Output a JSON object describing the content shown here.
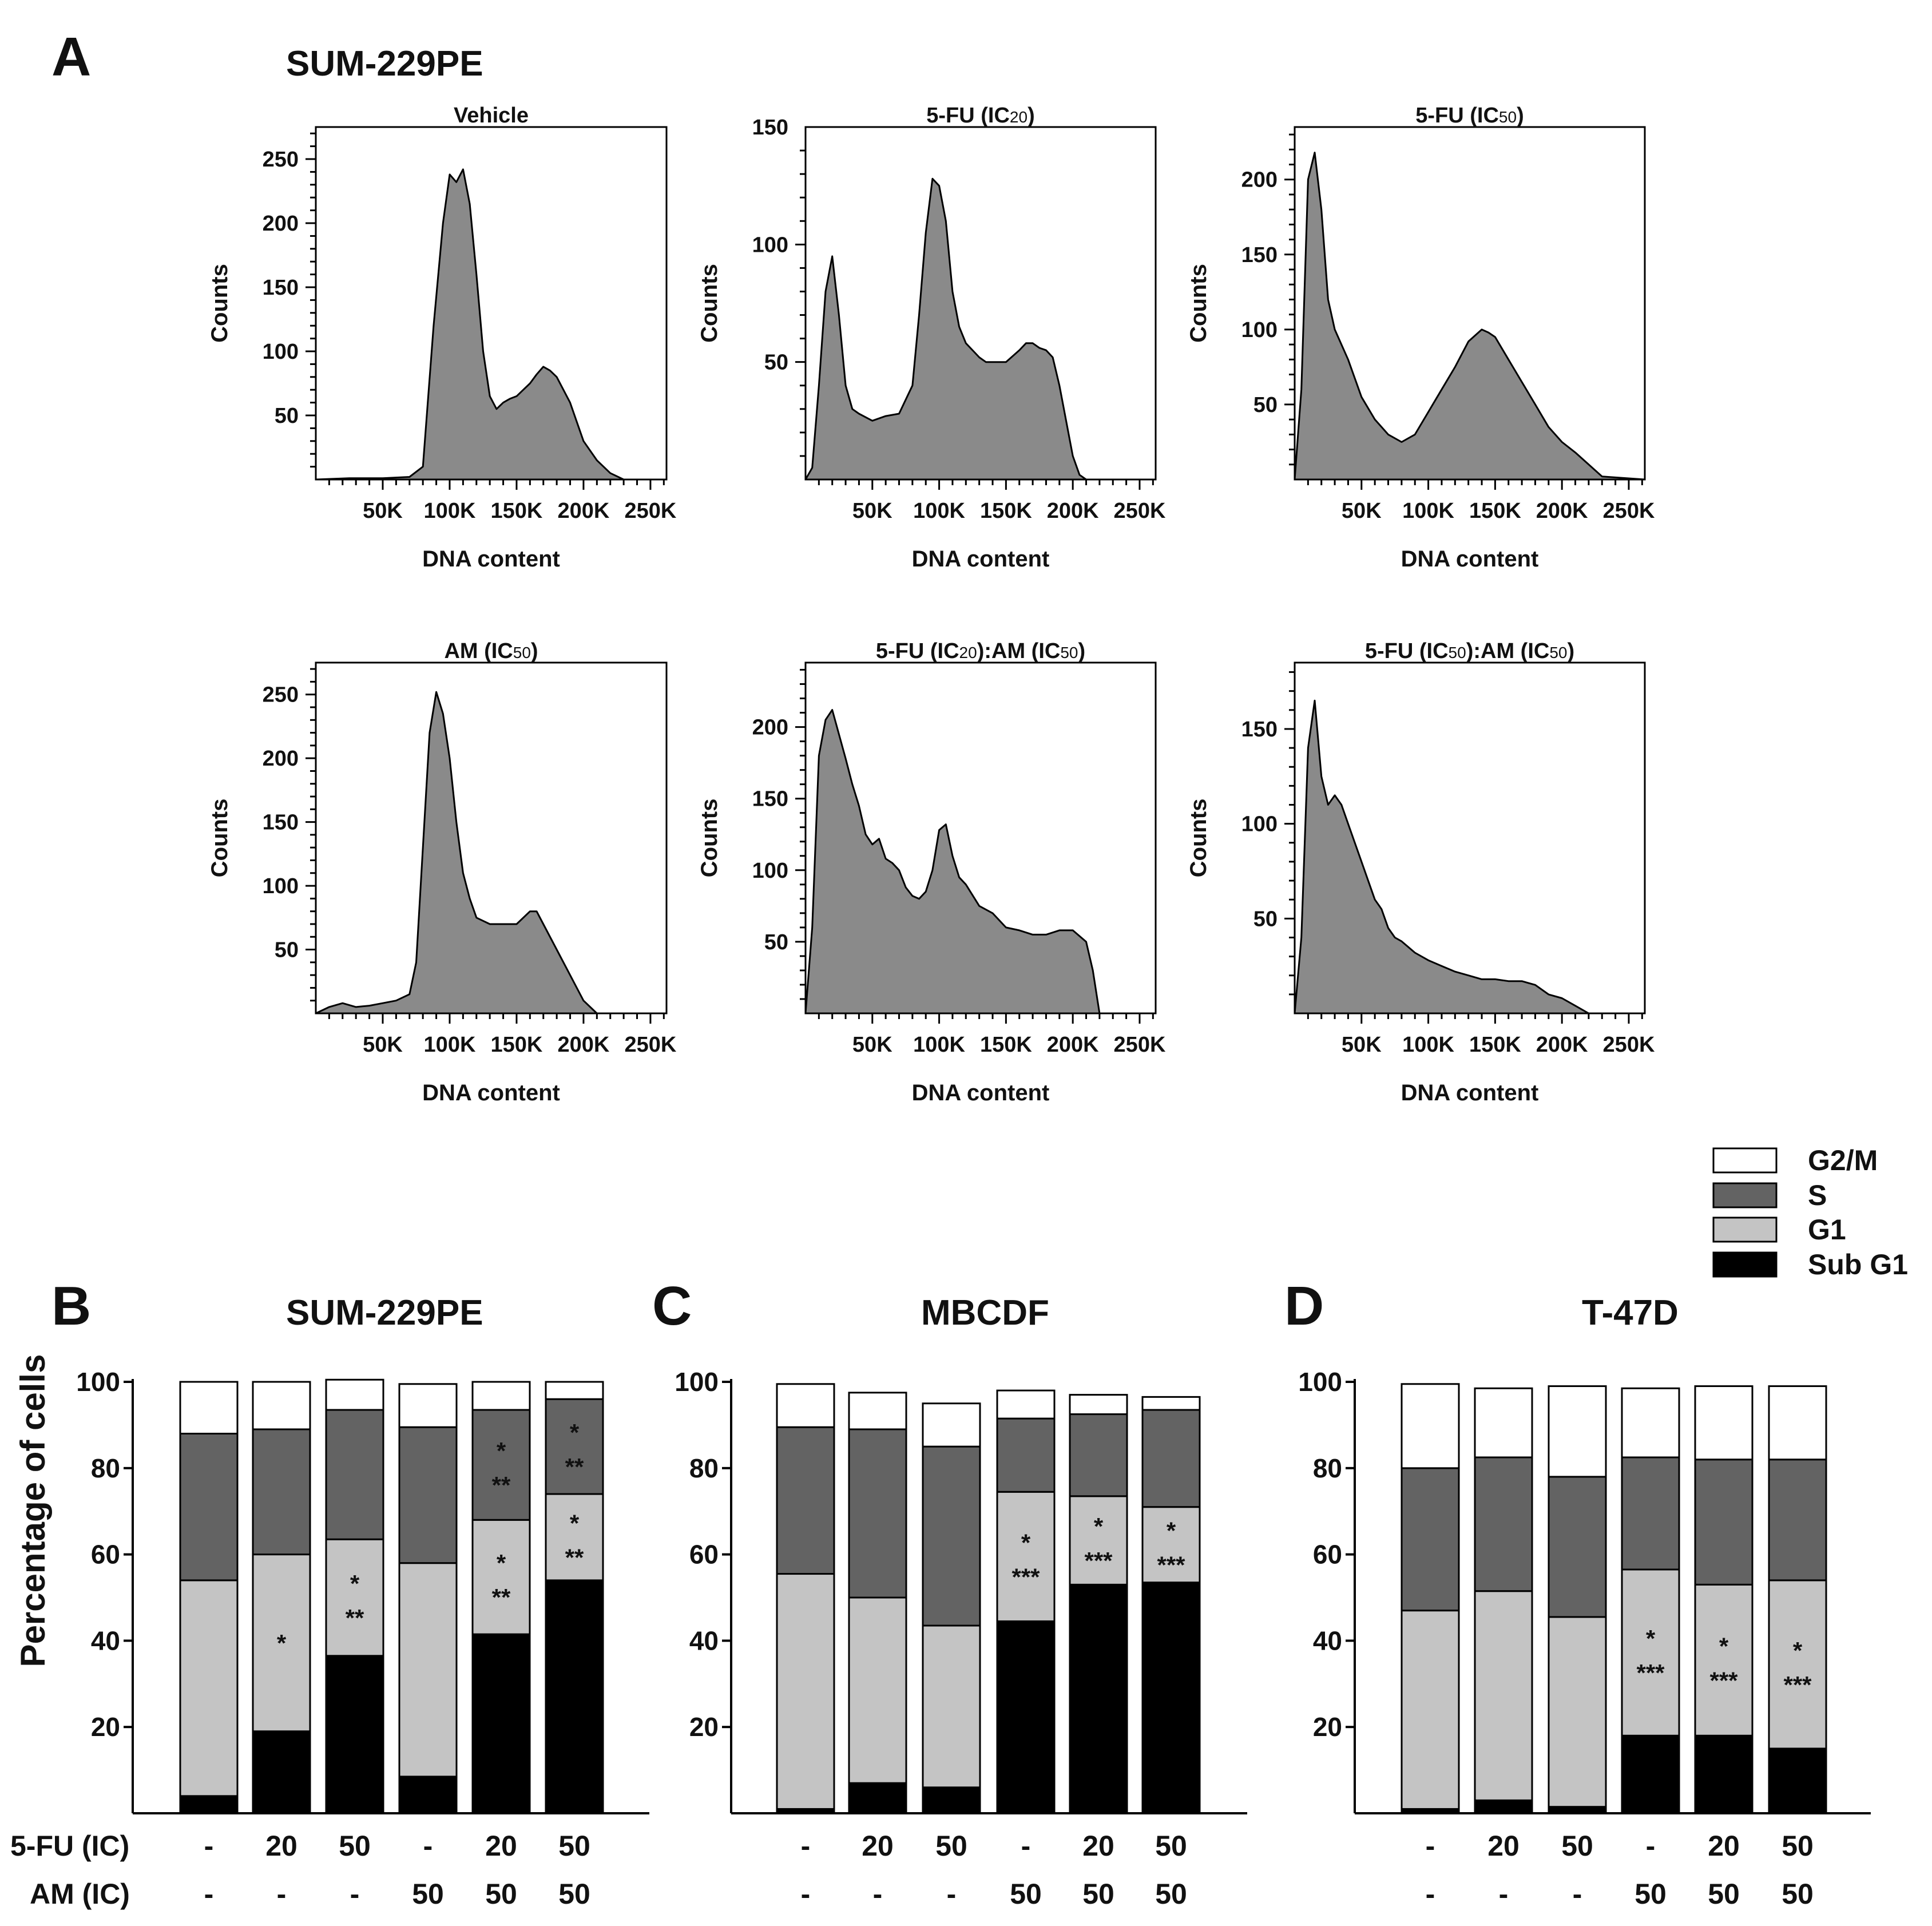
{
  "figure": {
    "panel_a": {
      "letter": "A",
      "cell_line": "SUM-229PE"
    },
    "panel_b": {
      "letter": "B",
      "cell_line": "SUM-229PE"
    },
    "panel_c": {
      "letter": "C",
      "cell_line": "MBCDF"
    },
    "panel_d": {
      "letter": "D",
      "cell_line": "T-47D"
    },
    "row_labels": [
      "5-FU (IC)",
      "AM (IC)"
    ],
    "fu_row": [
      "-",
      "20",
      "50",
      "-",
      "20",
      "50"
    ],
    "am_row": [
      "-",
      "-",
      "-",
      "50",
      "50",
      "50"
    ],
    "bar_ylabel": "Percentage of cells",
    "legend": [
      {
        "label": "G2/M",
        "color": "#ffffff"
      },
      {
        "label": "S",
        "color": "#636363"
      },
      {
        "label": "G1",
        "color": "#c4c4c4"
      },
      {
        "label": "Sub G1",
        "color": "#000000"
      }
    ]
  },
  "chart_data": [
    {
      "type": "area",
      "panel": "A",
      "title": "Vehicle",
      "xlabel": "DNA content",
      "ylabel": "Counts",
      "x_ticks": [
        "50K",
        "100K",
        "150K",
        "200K",
        "250K"
      ],
      "y_ticks": [
        50,
        100,
        150,
        200,
        250
      ],
      "xlim": [
        0,
        262000
      ],
      "ylim": [
        0,
        275
      ],
      "x": [
        0,
        25,
        50,
        70,
        80,
        88,
        95,
        100,
        105,
        110,
        115,
        120,
        125,
        130,
        135,
        140,
        145,
        150,
        155,
        160,
        165,
        170,
        175,
        180,
        185,
        190,
        195,
        200,
        210,
        220,
        230,
        240,
        262
      ],
      "y": [
        0,
        1,
        1,
        2,
        10,
        120,
        200,
        238,
        232,
        242,
        215,
        160,
        100,
        65,
        55,
        60,
        63,
        65,
        70,
        75,
        82,
        88,
        85,
        80,
        70,
        60,
        45,
        30,
        15,
        5,
        0,
        0,
        0
      ]
    },
    {
      "type": "area",
      "panel": "A",
      "title": "5-FU (IC20)",
      "xlabel": "DNA content",
      "ylabel": "Counts",
      "x_ticks": [
        "50K",
        "100K",
        "150K",
        "200K",
        "250K"
      ],
      "y_ticks": [
        50,
        100,
        150
      ],
      "xlim": [
        0,
        262000
      ],
      "ylim": [
        0,
        150
      ],
      "x": [
        0,
        5,
        10,
        15,
        20,
        25,
        30,
        35,
        40,
        50,
        60,
        70,
        80,
        85,
        90,
        95,
        100,
        105,
        110,
        115,
        120,
        125,
        130,
        135,
        140,
        150,
        160,
        165,
        170,
        175,
        180,
        185,
        190,
        195,
        200,
        205,
        210,
        262
      ],
      "y": [
        0,
        5,
        40,
        80,
        95,
        70,
        40,
        30,
        28,
        25,
        27,
        28,
        40,
        70,
        105,
        128,
        125,
        110,
        80,
        65,
        58,
        55,
        52,
        50,
        50,
        50,
        55,
        58,
        58,
        56,
        55,
        52,
        40,
        25,
        10,
        2,
        0,
        0
      ]
    },
    {
      "type": "area",
      "panel": "A",
      "title": "5-FU (IC50)",
      "xlabel": "DNA content",
      "ylabel": "Counts",
      "x_ticks": [
        "50K",
        "100K",
        "150K",
        "200K",
        "250K"
      ],
      "y_ticks": [
        50,
        100,
        150,
        200
      ],
      "xlim": [
        0,
        262000
      ],
      "ylim": [
        0,
        235
      ],
      "x": [
        0,
        5,
        10,
        15,
        20,
        25,
        30,
        40,
        50,
        60,
        70,
        80,
        90,
        100,
        110,
        120,
        130,
        140,
        145,
        150,
        160,
        170,
        180,
        190,
        200,
        210,
        220,
        230,
        262
      ],
      "y": [
        0,
        60,
        200,
        218,
        180,
        120,
        100,
        80,
        55,
        40,
        30,
        25,
        30,
        45,
        60,
        75,
        92,
        100,
        98,
        95,
        80,
        65,
        50,
        35,
        25,
        18,
        10,
        2,
        0
      ]
    },
    {
      "type": "area",
      "panel": "A",
      "title": "AM (IC50)",
      "xlabel": "DNA content",
      "ylabel": "Counts",
      "x_ticks": [
        "50K",
        "100K",
        "150K",
        "200K",
        "250K"
      ],
      "y_ticks": [
        50,
        100,
        150,
        200,
        250
      ],
      "xlim": [
        0,
        262000
      ],
      "ylim": [
        0,
        275
      ],
      "x": [
        0,
        10,
        20,
        30,
        40,
        50,
        60,
        70,
        75,
        80,
        85,
        90,
        95,
        100,
        105,
        110,
        115,
        120,
        130,
        140,
        150,
        160,
        165,
        170,
        180,
        190,
        200,
        210,
        262
      ],
      "y": [
        0,
        5,
        8,
        5,
        6,
        8,
        10,
        15,
        40,
        130,
        220,
        252,
        235,
        200,
        150,
        110,
        90,
        75,
        70,
        70,
        70,
        80,
        80,
        70,
        50,
        30,
        10,
        0,
        0
      ]
    },
    {
      "type": "area",
      "panel": "A",
      "title": "5-FU (IC20):AM (IC50)",
      "xlabel": "DNA content",
      "ylabel": "Counts",
      "x_ticks": [
        "50K",
        "100K",
        "150K",
        "200K",
        "250K"
      ],
      "y_ticks": [
        50,
        100,
        150,
        200
      ],
      "xlim": [
        0,
        262000
      ],
      "ylim": [
        0,
        245
      ],
      "x": [
        0,
        5,
        10,
        15,
        20,
        25,
        30,
        35,
        40,
        45,
        50,
        55,
        60,
        65,
        70,
        75,
        80,
        85,
        90,
        95,
        100,
        105,
        110,
        115,
        120,
        130,
        140,
        150,
        160,
        170,
        180,
        190,
        200,
        210,
        215,
        220,
        262
      ],
      "y": [
        0,
        60,
        180,
        205,
        212,
        195,
        178,
        160,
        145,
        125,
        118,
        122,
        108,
        105,
        100,
        88,
        82,
        80,
        85,
        100,
        128,
        132,
        110,
        95,
        90,
        75,
        70,
        60,
        58,
        55,
        55,
        58,
        58,
        50,
        30,
        0,
        0
      ]
    },
    {
      "type": "area",
      "panel": "A",
      "title": "5-FU (IC50):AM (IC50)",
      "xlabel": "DNA content",
      "ylabel": "Counts",
      "x_ticks": [
        "50K",
        "100K",
        "150K",
        "200K",
        "250K"
      ],
      "y_ticks": [
        50,
        100,
        150
      ],
      "xlim": [
        0,
        262000
      ],
      "ylim": [
        0,
        185
      ],
      "x": [
        0,
        5,
        10,
        15,
        20,
        25,
        30,
        35,
        40,
        45,
        50,
        55,
        60,
        65,
        70,
        75,
        80,
        90,
        100,
        110,
        120,
        130,
        140,
        150,
        160,
        170,
        180,
        190,
        200,
        210,
        220,
        262
      ],
      "y": [
        0,
        40,
        140,
        165,
        125,
        110,
        115,
        110,
        100,
        90,
        80,
        70,
        60,
        55,
        45,
        40,
        38,
        32,
        28,
        25,
        22,
        20,
        18,
        18,
        17,
        17,
        15,
        10,
        8,
        4,
        0,
        0
      ]
    },
    {
      "type": "bar",
      "stacked": true,
      "panel": "B",
      "title": "SUM-229PE",
      "ylabel": "Percentage of cells",
      "ylim": [
        0,
        100
      ],
      "y_ticks": [
        20,
        40,
        60,
        80,
        100
      ],
      "series": [
        {
          "name": "Sub G1",
          "values": [
            4,
            19,
            36.5,
            8.5,
            41.5,
            54
          ]
        },
        {
          "name": "G1",
          "values": [
            50,
            41,
            27,
            49.5,
            26.5,
            20
          ]
        },
        {
          "name": "S",
          "values": [
            34,
            29,
            30,
            31.5,
            25.5,
            22
          ]
        },
        {
          "name": "G2/M",
          "values": [
            12,
            11,
            7,
            10,
            6.5,
            4
          ]
        }
      ],
      "annotations": [
        {
          "bar": 1,
          "segment": "G1",
          "marks": [
            "*"
          ]
        },
        {
          "bar": 2,
          "segment": "G1",
          "marks": [
            "*",
            "**"
          ]
        },
        {
          "bar": 4,
          "segment": "G1",
          "marks": [
            "*",
            "**"
          ]
        },
        {
          "bar": 4,
          "segment": "S",
          "marks": [
            "*",
            "**"
          ]
        },
        {
          "bar": 5,
          "segment": "G1",
          "marks": [
            "*",
            "**"
          ]
        },
        {
          "bar": 5,
          "segment": "S",
          "marks": [
            "*",
            "**"
          ]
        }
      ]
    },
    {
      "type": "bar",
      "stacked": true,
      "panel": "C",
      "title": "MBCDF",
      "ylim": [
        0,
        100
      ],
      "y_ticks": [
        20,
        40,
        60,
        80,
        100
      ],
      "series": [
        {
          "name": "Sub G1",
          "values": [
            1,
            7,
            6,
            44.5,
            53,
            53.5
          ]
        },
        {
          "name": "G1",
          "values": [
            54.5,
            43,
            37.5,
            30,
            20.5,
            17.5
          ]
        },
        {
          "name": "S",
          "values": [
            34,
            39,
            41.5,
            17,
            19,
            22.5
          ]
        },
        {
          "name": "G2/M",
          "values": [
            10,
            8.5,
            10,
            6.5,
            4.5,
            3
          ]
        }
      ],
      "annotations": [
        {
          "bar": 3,
          "segment": "G1",
          "marks": [
            "*",
            "***"
          ]
        },
        {
          "bar": 4,
          "segment": "G1",
          "marks": [
            "*",
            "***"
          ]
        },
        {
          "bar": 5,
          "segment": "G1",
          "marks": [
            "*",
            "***"
          ]
        }
      ]
    },
    {
      "type": "bar",
      "stacked": true,
      "panel": "D",
      "title": "T-47D",
      "ylim": [
        0,
        100
      ],
      "y_ticks": [
        20,
        40,
        60,
        80,
        100
      ],
      "series": [
        {
          "name": "Sub G1",
          "values": [
            1,
            3,
            1.5,
            18,
            18,
            15
          ]
        },
        {
          "name": "G1",
          "values": [
            46,
            48.5,
            44,
            38.5,
            35,
            39
          ]
        },
        {
          "name": "S",
          "values": [
            33,
            31,
            32.5,
            26,
            29,
            28
          ]
        },
        {
          "name": "G2/M",
          "values": [
            19.5,
            16,
            21,
            16,
            17,
            17
          ]
        }
      ],
      "annotations": [
        {
          "bar": 3,
          "segment": "G1",
          "marks": [
            "*",
            "***"
          ]
        },
        {
          "bar": 4,
          "segment": "G1",
          "marks": [
            "*",
            "***"
          ]
        },
        {
          "bar": 5,
          "segment": "G1",
          "marks": [
            "*",
            "***"
          ]
        }
      ]
    }
  ]
}
